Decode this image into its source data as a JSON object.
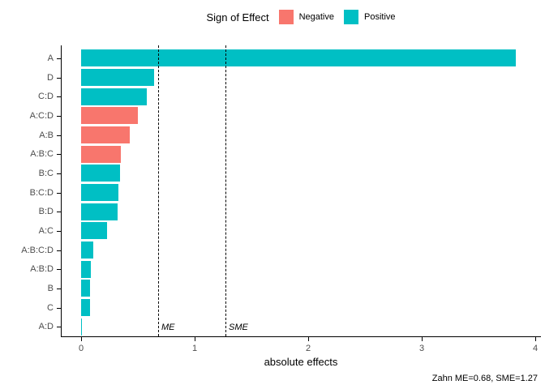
{
  "legend": {
    "title": "Sign of Effect",
    "items": [
      {
        "label": "Negative",
        "color": "#F8766D"
      },
      {
        "label": "Positive",
        "color": "#00BFC4"
      }
    ]
  },
  "chart_data": {
    "type": "bar",
    "orientation": "horizontal",
    "title": "",
    "xlabel": "absolute effects",
    "ylabel": "",
    "xlim": [
      0,
      4.05
    ],
    "xticks": [
      0,
      1,
      2,
      3,
      4
    ],
    "grid": false,
    "legend_position": "top-center",
    "categories": [
      "A",
      "D",
      "C:D",
      "A:C:D",
      "A:B",
      "A:B:C",
      "B:C",
      "B:C:D",
      "B:D",
      "A:C",
      "A:B:C:D",
      "A:B:D",
      "B",
      "C",
      "A:D"
    ],
    "values": [
      3.83,
      0.64,
      0.58,
      0.5,
      0.43,
      0.35,
      0.34,
      0.33,
      0.32,
      0.23,
      0.11,
      0.085,
      0.08,
      0.08,
      0.01
    ],
    "signs": [
      "Positive",
      "Positive",
      "Positive",
      "Negative",
      "Negative",
      "Negative",
      "Positive",
      "Positive",
      "Positive",
      "Positive",
      "Positive",
      "Positive",
      "Positive",
      "Positive",
      "Positive"
    ],
    "reference_lines": [
      {
        "label": "ME",
        "value": 0.68
      },
      {
        "label": "SME",
        "value": 1.27
      }
    ],
    "caption": "Zahn ME=0.68, SME=1.27"
  },
  "colors": {
    "negative": "#F8766D",
    "positive": "#00BFC4",
    "axis": "#000000",
    "tick_text": "#4d4d4d",
    "background": "#ffffff"
  }
}
